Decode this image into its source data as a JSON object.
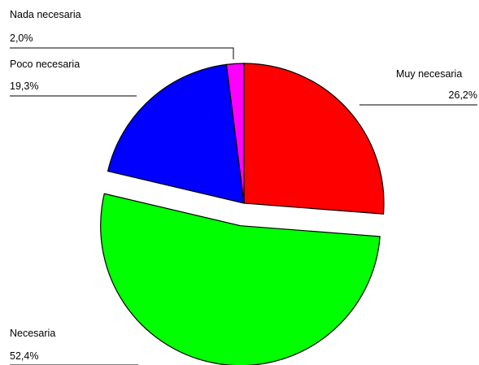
{
  "chart_data": {
    "type": "pie",
    "title": "",
    "exploded": "Necesaria",
    "slices": [
      {
        "name": "Muy necesaria",
        "value": 26.2,
        "label": "26,2%",
        "color": "#ff0000"
      },
      {
        "name": "Necesaria",
        "value": 52.4,
        "label": "52,4%",
        "color": "#00ff00"
      },
      {
        "name": "Poco necesaria",
        "value": 19.3,
        "label": "19,3%",
        "color": "#0000ff"
      },
      {
        "name": "Nada necesaria",
        "value": 2.0,
        "label": "2,0%",
        "color": "#ff00ff"
      }
    ]
  }
}
